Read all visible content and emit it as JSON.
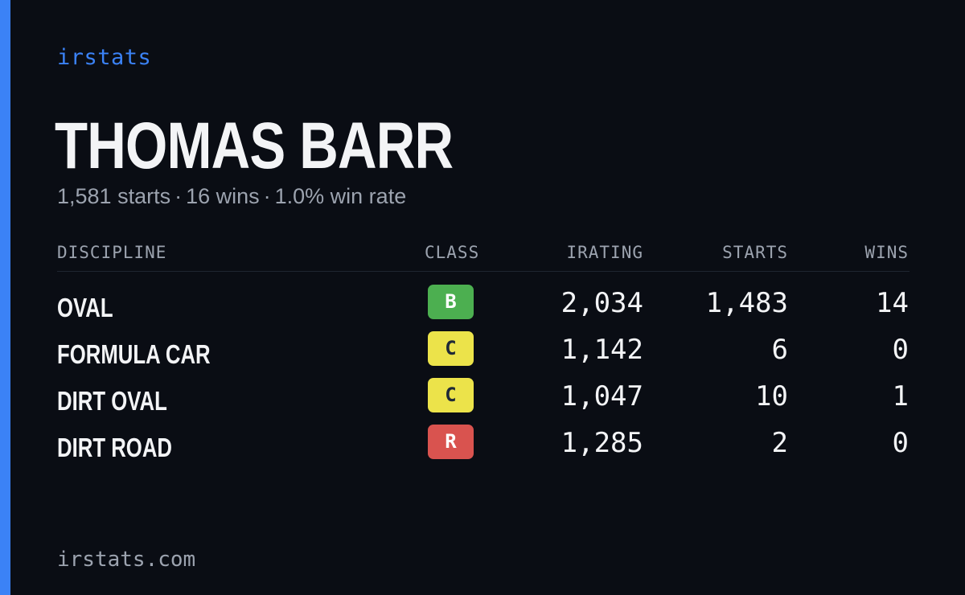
{
  "brand": "irstats",
  "player": {
    "name": "THOMAS BARR",
    "starts_text": "1,581 starts",
    "wins_text": "16 wins",
    "win_rate_text": "1.0% win rate",
    "separator": "·"
  },
  "table": {
    "headers": {
      "discipline": "DISCIPLINE",
      "class": "CLASS",
      "irating": "IRATING",
      "starts": "STARTS",
      "wins": "WINS"
    },
    "rows": [
      {
        "discipline": "OVAL",
        "class": "B",
        "class_bg": "#4caf50",
        "class_fg": "#ffffff",
        "irating": "2,034",
        "starts": "1,483",
        "wins": "14"
      },
      {
        "discipline": "FORMULA CAR",
        "class": "C",
        "class_bg": "#ece34a",
        "class_fg": "#1f2937",
        "irating": "1,142",
        "starts": "6",
        "wins": "0"
      },
      {
        "discipline": "DIRT OVAL",
        "class": "C",
        "class_bg": "#ece34a",
        "class_fg": "#1f2937",
        "irating": "1,047",
        "starts": "10",
        "wins": "1"
      },
      {
        "discipline": "DIRT ROAD",
        "class": "R",
        "class_bg": "#d9534f",
        "class_fg": "#ffffff",
        "irating": "1,285",
        "starts": "2",
        "wins": "0"
      }
    ]
  },
  "footer": "irstats.com",
  "colors": {
    "background": "#0a0d14",
    "accent": "#3b82f6",
    "text_primary": "#f3f4f6",
    "text_secondary": "#9ca3af"
  }
}
